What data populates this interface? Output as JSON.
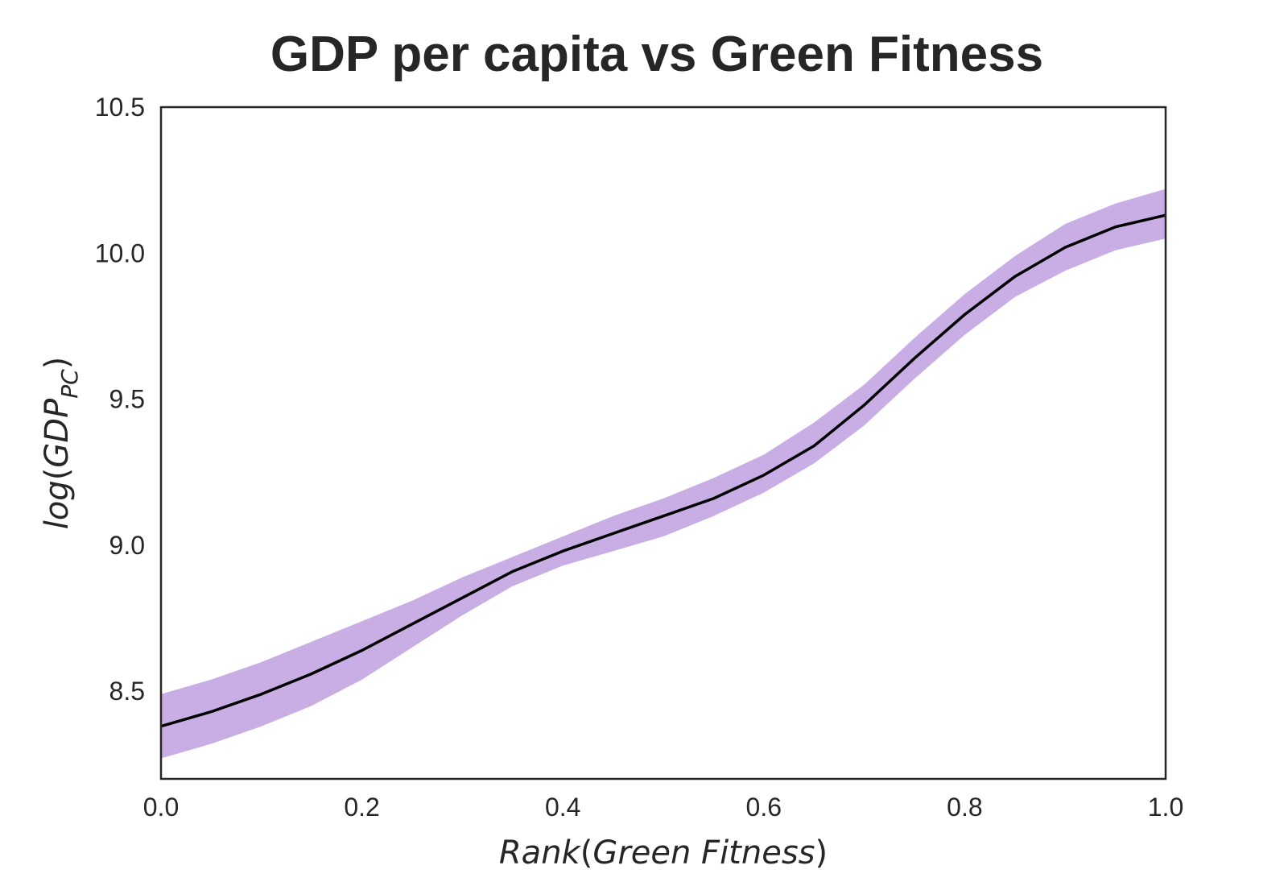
{
  "chart_data": {
    "type": "line",
    "title": "GDP per capita vs Green Fitness",
    "xlabel": {
      "prefix": "Rank",
      "open": "(",
      "inner": "Green Fitness",
      "close": ")"
    },
    "ylabel": {
      "prefix": "log",
      "open": "(",
      "inner": "GDP",
      "sub": "PC",
      "close": ")"
    },
    "xlim": [
      0.0,
      1.0
    ],
    "ylim": [
      8.2,
      10.5
    ],
    "xticks": [
      "0.0",
      "0.2",
      "0.4",
      "0.6",
      "0.8",
      "1.0"
    ],
    "yticks": [
      "8.5",
      "9.0",
      "9.5",
      "10.0",
      "10.5"
    ],
    "grid": false,
    "colors": {
      "band": "#c9aee5",
      "line": "#000000",
      "axes": "#262626"
    },
    "series": [
      {
        "x": [
          0.0,
          0.05,
          0.1,
          0.15,
          0.2,
          0.25,
          0.3,
          0.35,
          0.4,
          0.45,
          0.5,
          0.55,
          0.6,
          0.65,
          0.7,
          0.75,
          0.8,
          0.85,
          0.9,
          0.95,
          1.0
        ],
        "y": [
          8.38,
          8.43,
          8.49,
          8.56,
          8.64,
          8.73,
          8.82,
          8.91,
          8.98,
          9.04,
          9.1,
          9.16,
          9.24,
          9.34,
          9.48,
          9.64,
          9.79,
          9.92,
          10.02,
          10.09,
          10.13
        ],
        "lower": [
          8.27,
          8.32,
          8.38,
          8.45,
          8.54,
          8.65,
          8.76,
          8.86,
          8.93,
          8.98,
          9.03,
          9.1,
          9.18,
          9.28,
          9.41,
          9.57,
          9.72,
          9.85,
          9.94,
          10.01,
          10.05
        ],
        "upper": [
          8.49,
          8.54,
          8.6,
          8.67,
          8.74,
          8.81,
          8.89,
          8.96,
          9.03,
          9.1,
          9.16,
          9.23,
          9.31,
          9.42,
          9.55,
          9.71,
          9.86,
          9.99,
          10.1,
          10.17,
          10.22
        ]
      }
    ]
  }
}
